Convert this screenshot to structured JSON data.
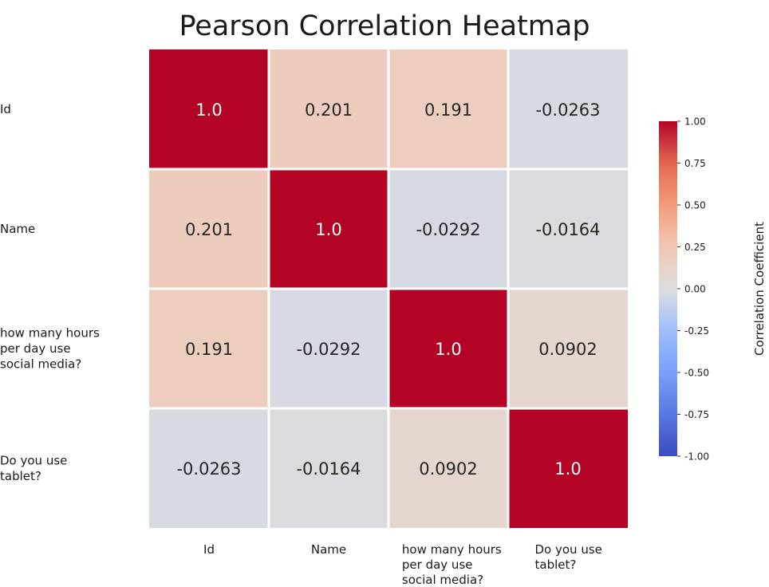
{
  "chart_data": {
    "type": "heatmap",
    "title": "Pearson Correlation Heatmap",
    "rows": [
      [
        "Id"
      ],
      [
        "Name"
      ],
      [
        "how many hours",
        "per day use",
        "social media?"
      ],
      [
        "Do you use",
        "tablet?"
      ]
    ],
    "columns": [
      [
        "Id"
      ],
      [
        "Name"
      ],
      [
        "how many hours",
        "per day use",
        "social media?"
      ],
      [
        "Do you use",
        "tablet?"
      ]
    ],
    "values": [
      [
        1.0,
        0.201,
        0.191,
        -0.0263
      ],
      [
        0.201,
        1.0,
        -0.0292,
        -0.0164
      ],
      [
        0.191,
        -0.0292,
        1.0,
        0.0902
      ],
      [
        -0.0263,
        -0.0164,
        0.0902,
        1.0
      ]
    ],
    "labels": [
      [
        "1.0",
        "0.201",
        "0.191",
        "-0.0263"
      ],
      [
        "0.201",
        "1.0",
        "-0.0292",
        "-0.0164"
      ],
      [
        "0.191",
        "-0.0292",
        "1.0",
        "0.0902"
      ],
      [
        "-0.0263",
        "-0.0164",
        "0.0902",
        "1.0"
      ]
    ],
    "colorbar": {
      "label": "Correlation Coefficient",
      "range": [
        -1,
        1
      ],
      "ticks": [
        "1.00",
        "0.75",
        "0.50",
        "0.25",
        "0.00",
        "-0.25",
        "-0.50",
        "-0.75",
        "-1.00"
      ],
      "colormap": "coolwarm",
      "colors": {
        "low": "#3b4cc0",
        "mid": "#dddddd",
        "high": "#b40426"
      }
    },
    "cell_text_colors": {
      "dark": "#262626",
      "light": "#ffffff"
    }
  }
}
